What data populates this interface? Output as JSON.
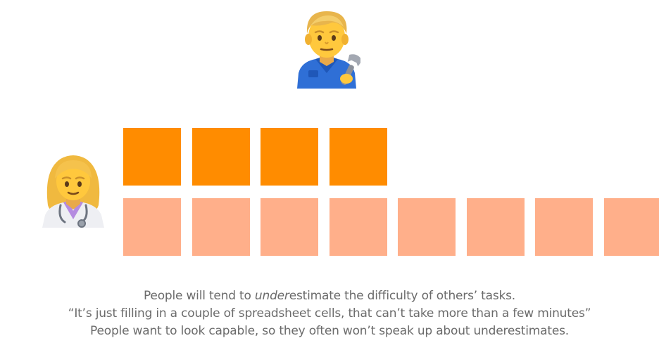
{
  "figures": {
    "top_person": {
      "icon": "mechanic-icon"
    },
    "left_person": {
      "icon": "doctor-icon"
    }
  },
  "blocks": {
    "estimated": {
      "count": 4,
      "color": "#FF8C00"
    },
    "actual": {
      "count": 8,
      "color": "#FFAF8A"
    }
  },
  "caption": {
    "line1_before": "People will tend to ",
    "line1_emphasis": "under",
    "line1_after": "estimate the difficulty of others’ tasks.",
    "line2": "“It’s just filling in a couple of spreadsheet cells, that can’t take more than a few minutes”",
    "line3": "People want to look capable, so they often won’t speak up about underestimates."
  }
}
